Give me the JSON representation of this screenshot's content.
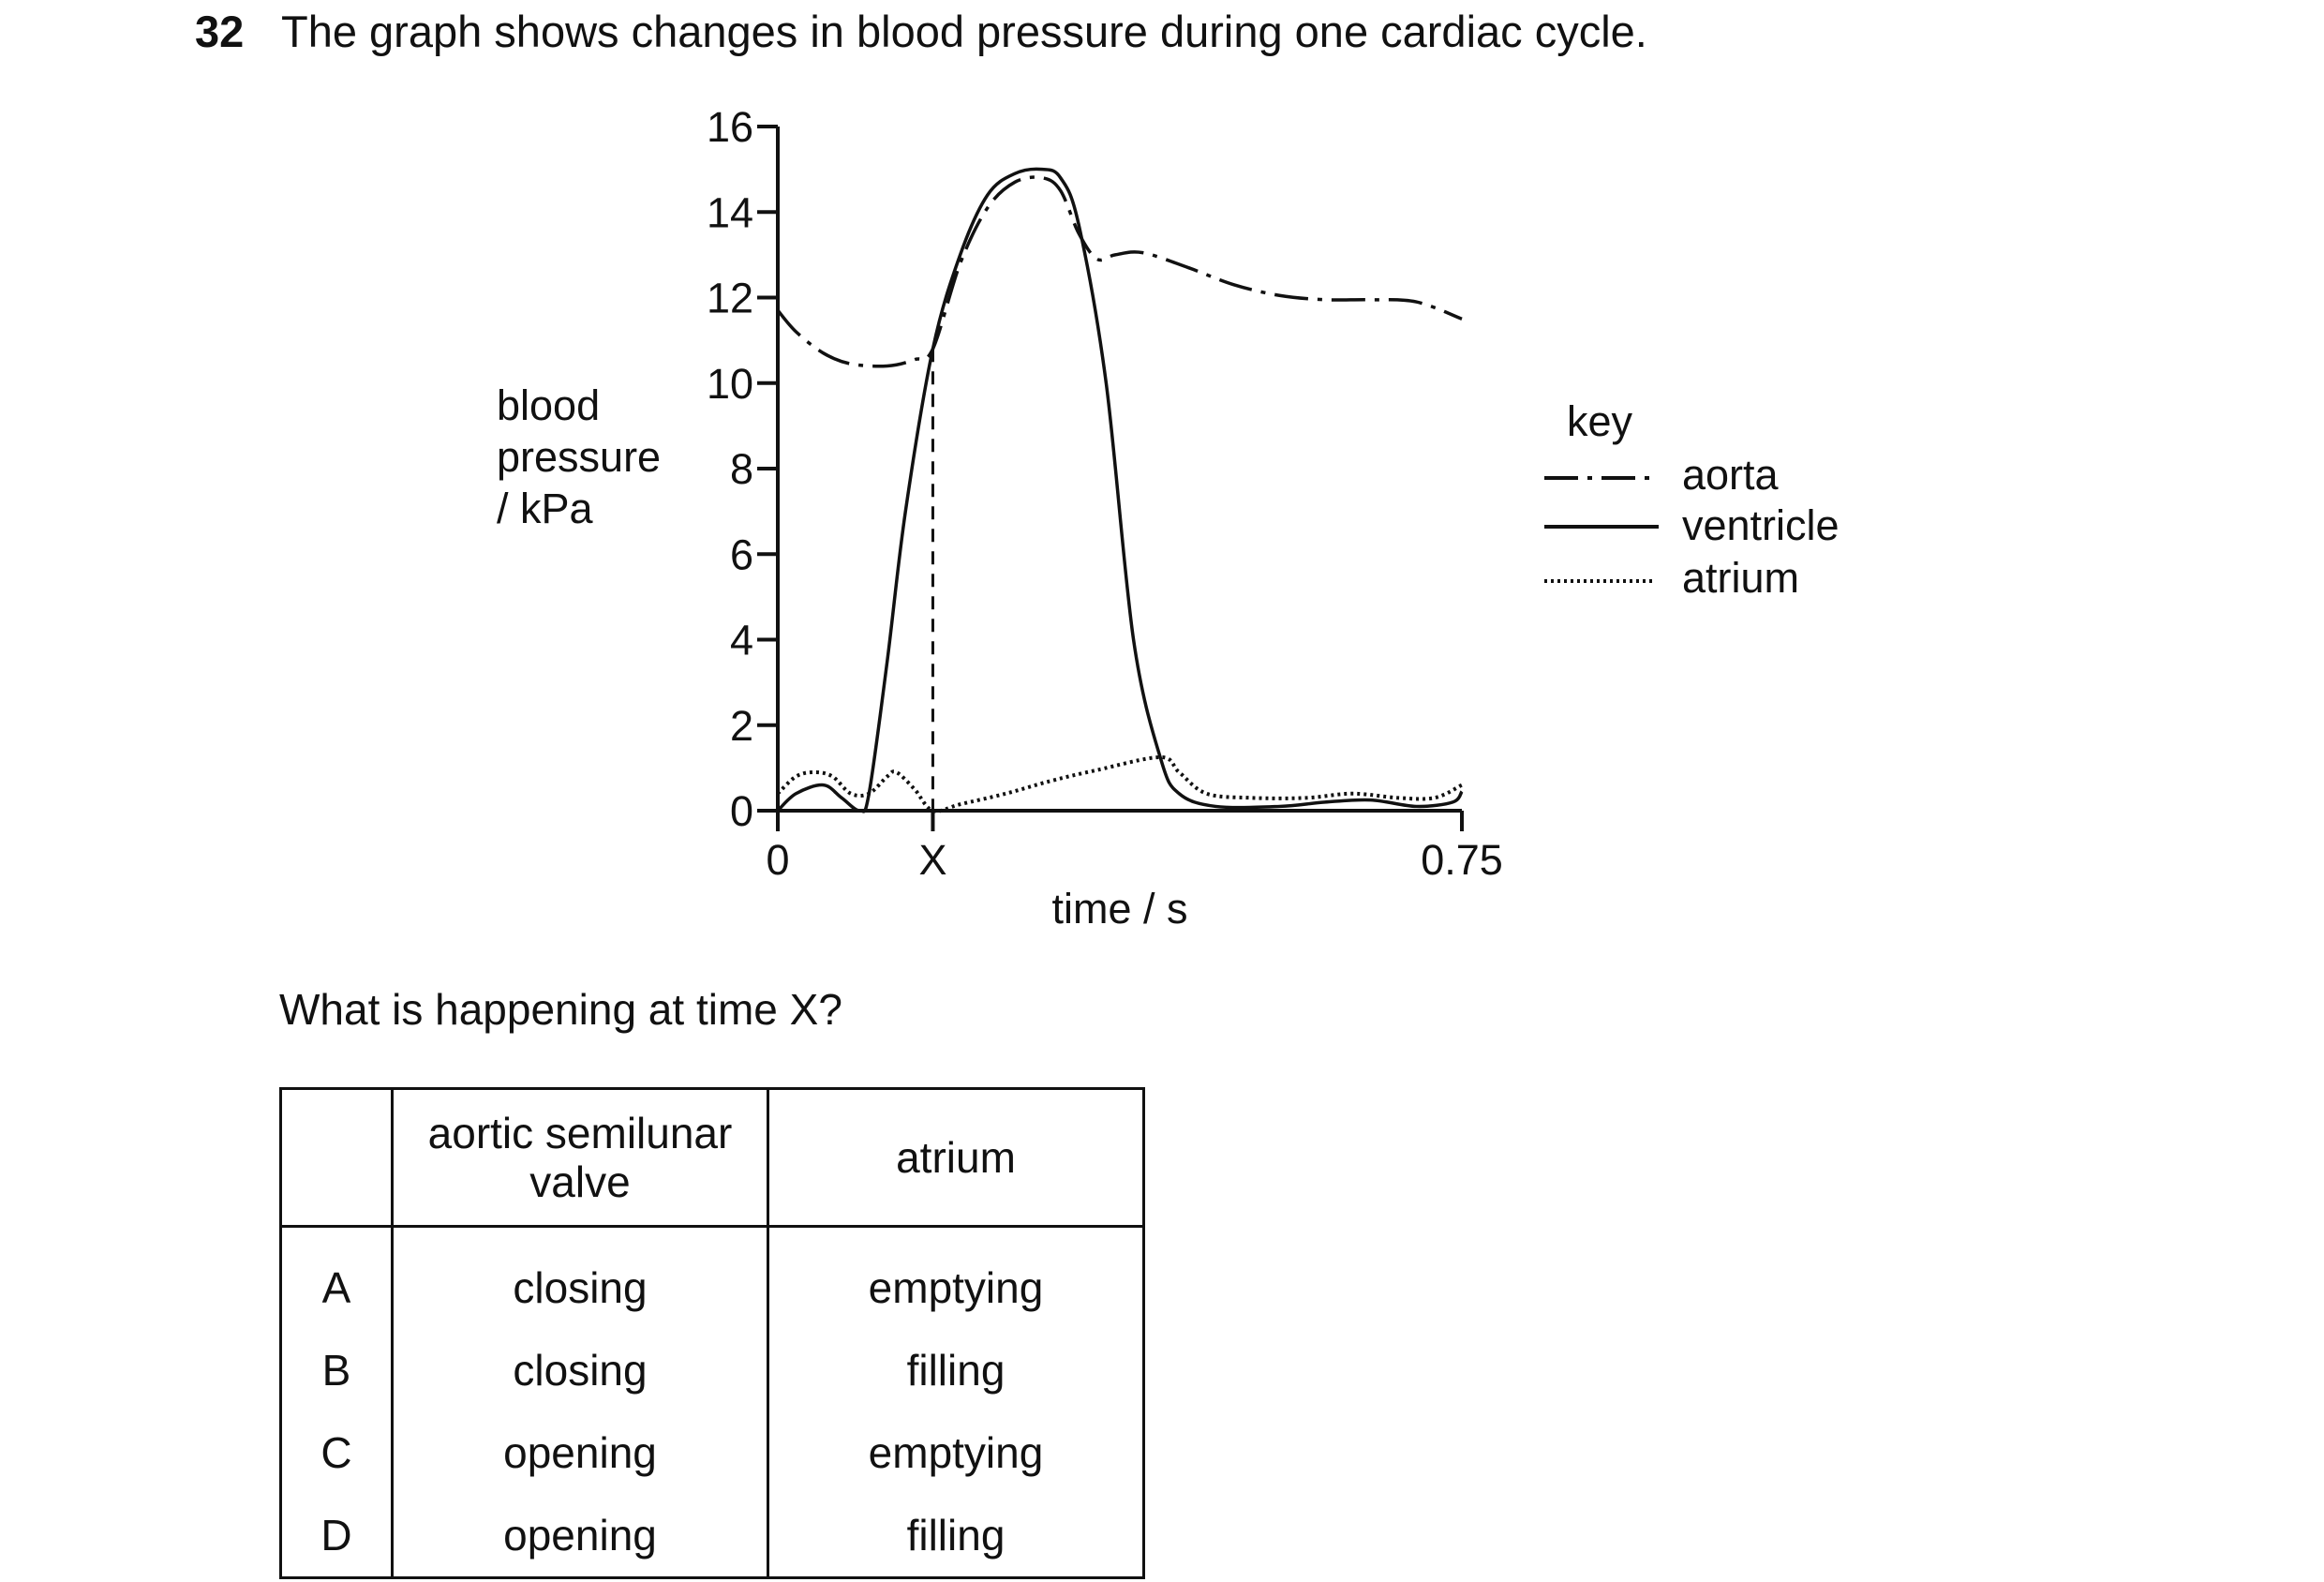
{
  "question": {
    "number": "32",
    "text": "The graph shows changes in blood pressure during one cardiac cycle.",
    "prompt": "What is happening at time X?"
  },
  "chart_data": {
    "type": "line",
    "ylabel_lines": [
      "blood",
      "pressure",
      "/ kPa"
    ],
    "xlabel": "time / s",
    "y_ticks": [
      0,
      2,
      4,
      6,
      8,
      10,
      12,
      14,
      16
    ],
    "x_ticks": [
      {
        "value": 0,
        "label": "0"
      },
      {
        "value": 0.17,
        "label": "X"
      },
      {
        "value": 0.75,
        "label": "0.75"
      }
    ],
    "xlim": [
      0,
      0.75
    ],
    "ylim": [
      0,
      16
    ],
    "marker_x": 0.17,
    "key_title": "key",
    "series": [
      {
        "name": "aorta",
        "style": "dashdot",
        "points": [
          [
            0,
            11.7
          ],
          [
            0.02,
            11.2
          ],
          [
            0.05,
            10.7
          ],
          [
            0.08,
            10.45
          ],
          [
            0.12,
            10.4
          ],
          [
            0.15,
            10.55
          ],
          [
            0.17,
            10.8
          ],
          [
            0.2,
            12.8
          ],
          [
            0.23,
            14.1
          ],
          [
            0.26,
            14.7
          ],
          [
            0.29,
            14.8
          ],
          [
            0.31,
            14.5
          ],
          [
            0.33,
            13.5
          ],
          [
            0.35,
            12.9
          ],
          [
            0.37,
            13.0
          ],
          [
            0.4,
            13.05
          ],
          [
            0.45,
            12.7
          ],
          [
            0.5,
            12.3
          ],
          [
            0.55,
            12.05
          ],
          [
            0.6,
            11.95
          ],
          [
            0.65,
            11.95
          ],
          [
            0.7,
            11.9
          ],
          [
            0.75,
            11.5
          ]
        ]
      },
      {
        "name": "ventricle",
        "style": "solid",
        "points": [
          [
            0,
            0
          ],
          [
            0.02,
            0.4
          ],
          [
            0.05,
            0.6
          ],
          [
            0.07,
            0.3
          ],
          [
            0.09,
            0.0
          ],
          [
            0.1,
            0.4
          ],
          [
            0.12,
            3.5
          ],
          [
            0.14,
            7
          ],
          [
            0.17,
            10.8
          ],
          [
            0.2,
            13
          ],
          [
            0.23,
            14.4
          ],
          [
            0.26,
            14.9
          ],
          [
            0.29,
            15.0
          ],
          [
            0.31,
            14.8
          ],
          [
            0.33,
            13.7
          ],
          [
            0.36,
            10
          ],
          [
            0.39,
            4
          ],
          [
            0.42,
            1.2
          ],
          [
            0.44,
            0.4
          ],
          [
            0.48,
            0.1
          ],
          [
            0.55,
            0.1
          ],
          [
            0.6,
            0.2
          ],
          [
            0.65,
            0.25
          ],
          [
            0.7,
            0.1
          ],
          [
            0.74,
            0.2
          ],
          [
            0.75,
            0.45
          ]
        ]
      },
      {
        "name": "atrium",
        "style": "dotted",
        "points": [
          [
            0,
            0.4
          ],
          [
            0.02,
            0.8
          ],
          [
            0.04,
            0.9
          ],
          [
            0.06,
            0.8
          ],
          [
            0.08,
            0.4
          ],
          [
            0.1,
            0.4
          ],
          [
            0.12,
            0.8
          ],
          [
            0.13,
            0.9
          ],
          [
            0.15,
            0.5
          ],
          [
            0.17,
            0.0
          ],
          [
            0.2,
            0.15
          ],
          [
            0.25,
            0.4
          ],
          [
            0.3,
            0.7
          ],
          [
            0.35,
            0.95
          ],
          [
            0.42,
            1.25
          ],
          [
            0.44,
            0.9
          ],
          [
            0.47,
            0.4
          ],
          [
            0.52,
            0.3
          ],
          [
            0.58,
            0.3
          ],
          [
            0.63,
            0.4
          ],
          [
            0.68,
            0.3
          ],
          [
            0.72,
            0.3
          ],
          [
            0.75,
            0.6
          ]
        ]
      }
    ]
  },
  "options_table": {
    "headers": [
      "",
      "aortic semilunar valve",
      "atrium"
    ],
    "header_lines": {
      "valve": [
        "aortic semilunar",
        "valve"
      ],
      "atrium": [
        "atrium"
      ]
    },
    "rows": [
      {
        "letter": "A",
        "valve": "closing",
        "atrium": "emptying"
      },
      {
        "letter": "B",
        "valve": "closing",
        "atrium": "filling"
      },
      {
        "letter": "C",
        "valve": "opening",
        "atrium": "emptying"
      },
      {
        "letter": "D",
        "valve": "opening",
        "atrium": "filling"
      }
    ]
  }
}
